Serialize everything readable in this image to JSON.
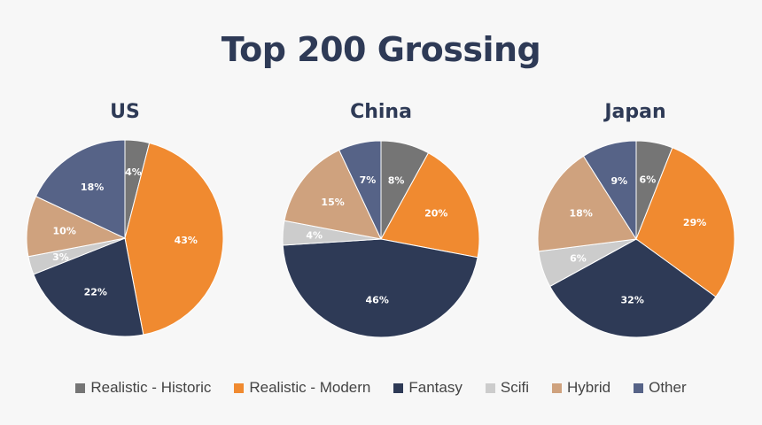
{
  "title": "Top 200 Grossing",
  "legend": [
    {
      "label": "Realistic - Historic",
      "color": "#757575"
    },
    {
      "label": "Realistic - Modern",
      "color": "#f08a30"
    },
    {
      "label": "Fantasy",
      "color": "#2e3a56"
    },
    {
      "label": "Scifi",
      "color": "#cccccc"
    },
    {
      "label": "Hybrid",
      "color": "#cfa27e"
    },
    {
      "label": "Other",
      "color": "#566387"
    }
  ],
  "chart_data": [
    {
      "type": "pie",
      "title": "US",
      "categories": [
        "Realistic - Historic",
        "Realistic - Modern",
        "Fantasy",
        "Scifi",
        "Hybrid",
        "Other"
      ],
      "values": [
        4,
        43,
        22,
        3,
        10,
        18
      ],
      "labels": [
        "4%",
        "43%",
        "22%",
        "3%",
        "10%",
        "18%"
      ]
    },
    {
      "type": "pie",
      "title": "China",
      "categories": [
        "Realistic - Historic",
        "Realistic - Modern",
        "Fantasy",
        "Scifi",
        "Hybrid",
        "Other"
      ],
      "values": [
        8,
        20,
        46,
        4,
        15,
        7
      ],
      "labels": [
        "8%",
        "20%",
        "46%",
        "4%",
        "15%",
        "7%"
      ]
    },
    {
      "type": "pie",
      "title": "Japan",
      "categories": [
        "Realistic - Historic",
        "Realistic - Modern",
        "Fantasy",
        "Scifi",
        "Hybrid",
        "Other"
      ],
      "values": [
        6,
        29,
        32,
        6,
        18,
        9
      ],
      "labels": [
        "6%",
        "29%",
        "32%",
        "6%",
        "18%",
        "9%"
      ]
    }
  ]
}
